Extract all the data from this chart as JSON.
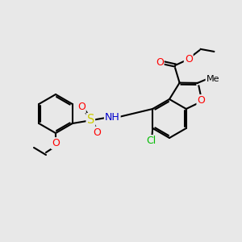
{
  "bg_color": "#e8e8e8",
  "bond_color": "#000000",
  "bond_width": 1.5,
  "atom_colors": {
    "O": "#ff0000",
    "N": "#0000cd",
    "S": "#cccc00",
    "Cl": "#00bb00",
    "C": "#000000",
    "H": "#7a7a7a"
  },
  "font_size": 8.5
}
